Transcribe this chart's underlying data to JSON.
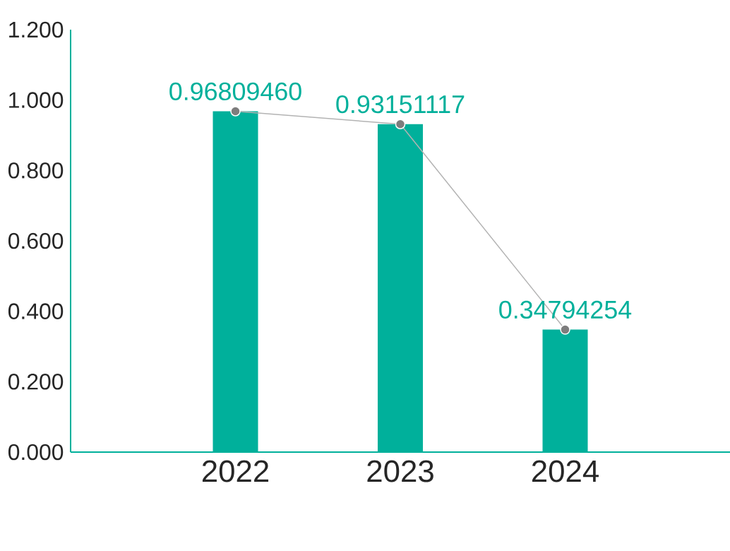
{
  "chart_data": {
    "type": "bar",
    "categories": [
      "2022",
      "2023",
      "2024"
    ],
    "series": [
      {
        "type": "bar",
        "color": "#00b09b",
        "values": [
          0.9680946,
          0.93151117,
          0.34794254
        ],
        "value_labels": [
          "0.96809460",
          "0.93151117",
          "0.34794254"
        ]
      },
      {
        "type": "line",
        "color": "#b3b3b3",
        "marker": "circle",
        "values": [
          0.9680946,
          0.93151117,
          0.34794254
        ]
      }
    ],
    "ylim": [
      0,
      1.2
    ],
    "yticks": [
      {
        "value": 0,
        "label": "0.000"
      },
      {
        "value": 0.2,
        "label": "0.200"
      },
      {
        "value": 0.4,
        "label": "0.400"
      },
      {
        "value": 0.6,
        "label": "0.600"
      },
      {
        "value": 0.8,
        "label": "0.800"
      },
      {
        "value": 1.0,
        "label": "1.000"
      },
      {
        "value": 1.2,
        "label": "1.200"
      }
    ],
    "grid": false,
    "legend": false
  }
}
